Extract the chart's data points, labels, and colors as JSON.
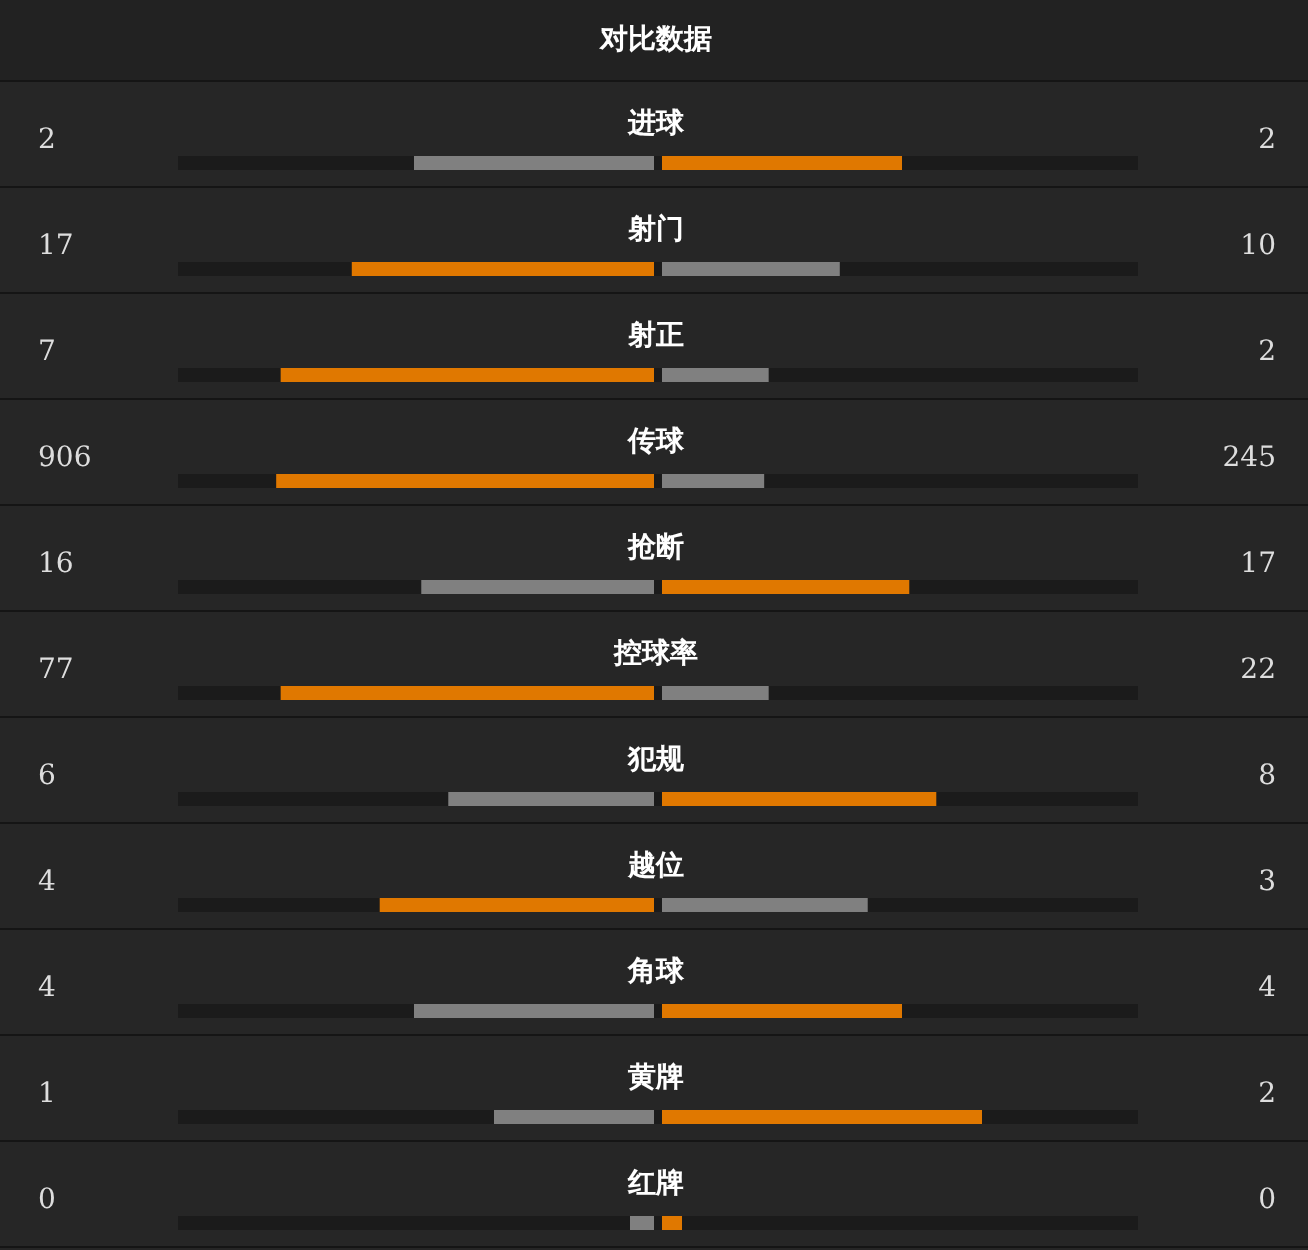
{
  "chart_data": {
    "type": "other",
    "title": "对比数据",
    "categories": [
      "进球",
      "射门",
      "射正",
      "传球",
      "抢断",
      "控球率",
      "犯规",
      "越位",
      "角球",
      "黄牌",
      "红牌"
    ],
    "series": [
      {
        "values": [
          2,
          17,
          7,
          906,
          16,
          77,
          6,
          4,
          4,
          1,
          0
        ],
        "colors": [
          "#808080",
          "#e07800",
          "#e07800",
          "#e07800",
          "#808080",
          "#e07800",
          "#808080",
          "#e07800",
          "#808080",
          "#808080",
          "#808080"
        ]
      },
      {
        "values": [
          2,
          10,
          2,
          245,
          17,
          22,
          8,
          3,
          4,
          2,
          0
        ],
        "colors": [
          "#e07800",
          "#808080",
          "#808080",
          "#808080",
          "#e07800",
          "#808080",
          "#e07800",
          "#808080",
          "#e07800",
          "#e07800",
          "#e07800"
        ]
      }
    ],
    "data_labels": true
  }
}
